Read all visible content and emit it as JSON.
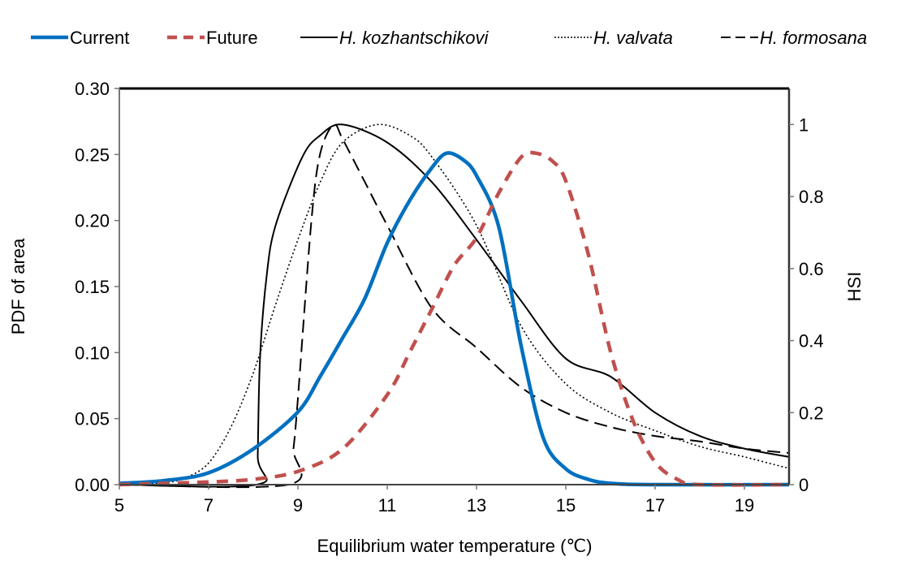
{
  "chart_data": {
    "type": "line",
    "xlabel": "Equilibrium water temperature (℃)",
    "ylabel": "PDF of area",
    "y2label": "HSI",
    "xlim": [
      5,
      20
    ],
    "ylim": [
      0,
      0.3
    ],
    "y2lim": [
      0,
      1.1
    ],
    "xticks": [
      "5",
      "7",
      "9",
      "11",
      "13",
      "15",
      "17",
      "19"
    ],
    "yticks": [
      "0.00",
      "0.05",
      "0.10",
      "0.15",
      "0.20",
      "0.25",
      "0.30"
    ],
    "y2ticks": [
      "0",
      "0.2",
      "0.4",
      "0.6",
      "0.8",
      "1"
    ],
    "grid": false,
    "legend_position": "top",
    "series": [
      {
        "name": "Current",
        "italic": false,
        "axis": "left",
        "color": "#0070C0",
        "style": "solid-thick",
        "x": [
          5,
          6,
          7,
          8,
          9,
          9.5,
          10,
          10.5,
          11,
          11.5,
          12,
          12.33,
          12.7,
          13,
          13.5,
          14,
          14.5,
          15,
          15.5,
          16,
          17,
          20
        ],
        "y": [
          0.001,
          0.003,
          0.009,
          0.027,
          0.055,
          0.082,
          0.111,
          0.141,
          0.183,
          0.215,
          0.24,
          0.251,
          0.246,
          0.234,
          0.195,
          0.105,
          0.035,
          0.012,
          0.004,
          0.001,
          0,
          0
        ]
      },
      {
        "name": "Future",
        "italic": false,
        "axis": "left",
        "color": "#C0504D",
        "style": "dashed-thick",
        "x": [
          5,
          6,
          7,
          8,
          9,
          10,
          11,
          11.5,
          12,
          12.5,
          13,
          13.5,
          14,
          14.33,
          14.7,
          15,
          15.5,
          16,
          16.5,
          17,
          17.5,
          18,
          20
        ],
        "y": [
          0,
          0.001,
          0.002,
          0.004,
          0.01,
          0.027,
          0.068,
          0.1,
          0.133,
          0.166,
          0.187,
          0.221,
          0.248,
          0.251,
          0.245,
          0.23,
          0.175,
          0.101,
          0.049,
          0.017,
          0.004,
          0,
          0
        ]
      },
      {
        "name": "H. kozhantschikovi",
        "italic": true,
        "axis": "right",
        "color": "#000000",
        "style": "solid",
        "x": [
          5,
          8.08,
          8.1,
          8.15,
          8.3,
          8.5,
          9.1,
          9.5,
          10,
          11,
          12,
          13,
          14,
          15,
          16,
          17,
          18,
          19,
          20
        ],
        "y": [
          0,
          0,
          0.08,
          0.35,
          0.58,
          0.72,
          0.91,
          0.97,
          1.0,
          0.95,
          0.84,
          0.68,
          0.51,
          0.35,
          0.3,
          0.2,
          0.135,
          0.1,
          0.077
        ]
      },
      {
        "name": "H. valvata",
        "italic": true,
        "axis": "right",
        "color": "#000000",
        "style": "dotted",
        "x": [
          5,
          6,
          6.5,
          7,
          7.5,
          8,
          8.5,
          9,
          9.5,
          10,
          10.78,
          11.5,
          12,
          13,
          14,
          15,
          16,
          17,
          18,
          19,
          20
        ],
        "y": [
          0,
          0.005,
          0.02,
          0.06,
          0.16,
          0.31,
          0.5,
          0.68,
          0.84,
          0.95,
          1.0,
          0.97,
          0.91,
          0.72,
          0.44,
          0.28,
          0.2,
          0.15,
          0.106,
          0.077,
          0.045
        ]
      },
      {
        "name": "H. formosana",
        "italic": true,
        "axis": "right",
        "color": "#000000",
        "style": "long-dash",
        "x": [
          5,
          8.78,
          8.9,
          9,
          9.3,
          9.5,
          9.8,
          10,
          10.5,
          11,
          12,
          13,
          14,
          15,
          16,
          17,
          18,
          19,
          20
        ],
        "y": [
          0,
          0,
          0.1,
          0.24,
          0.73,
          0.92,
          1.0,
          0.96,
          0.84,
          0.72,
          0.49,
          0.38,
          0.27,
          0.2,
          0.16,
          0.135,
          0.12,
          0.1,
          0.088
        ]
      }
    ]
  }
}
